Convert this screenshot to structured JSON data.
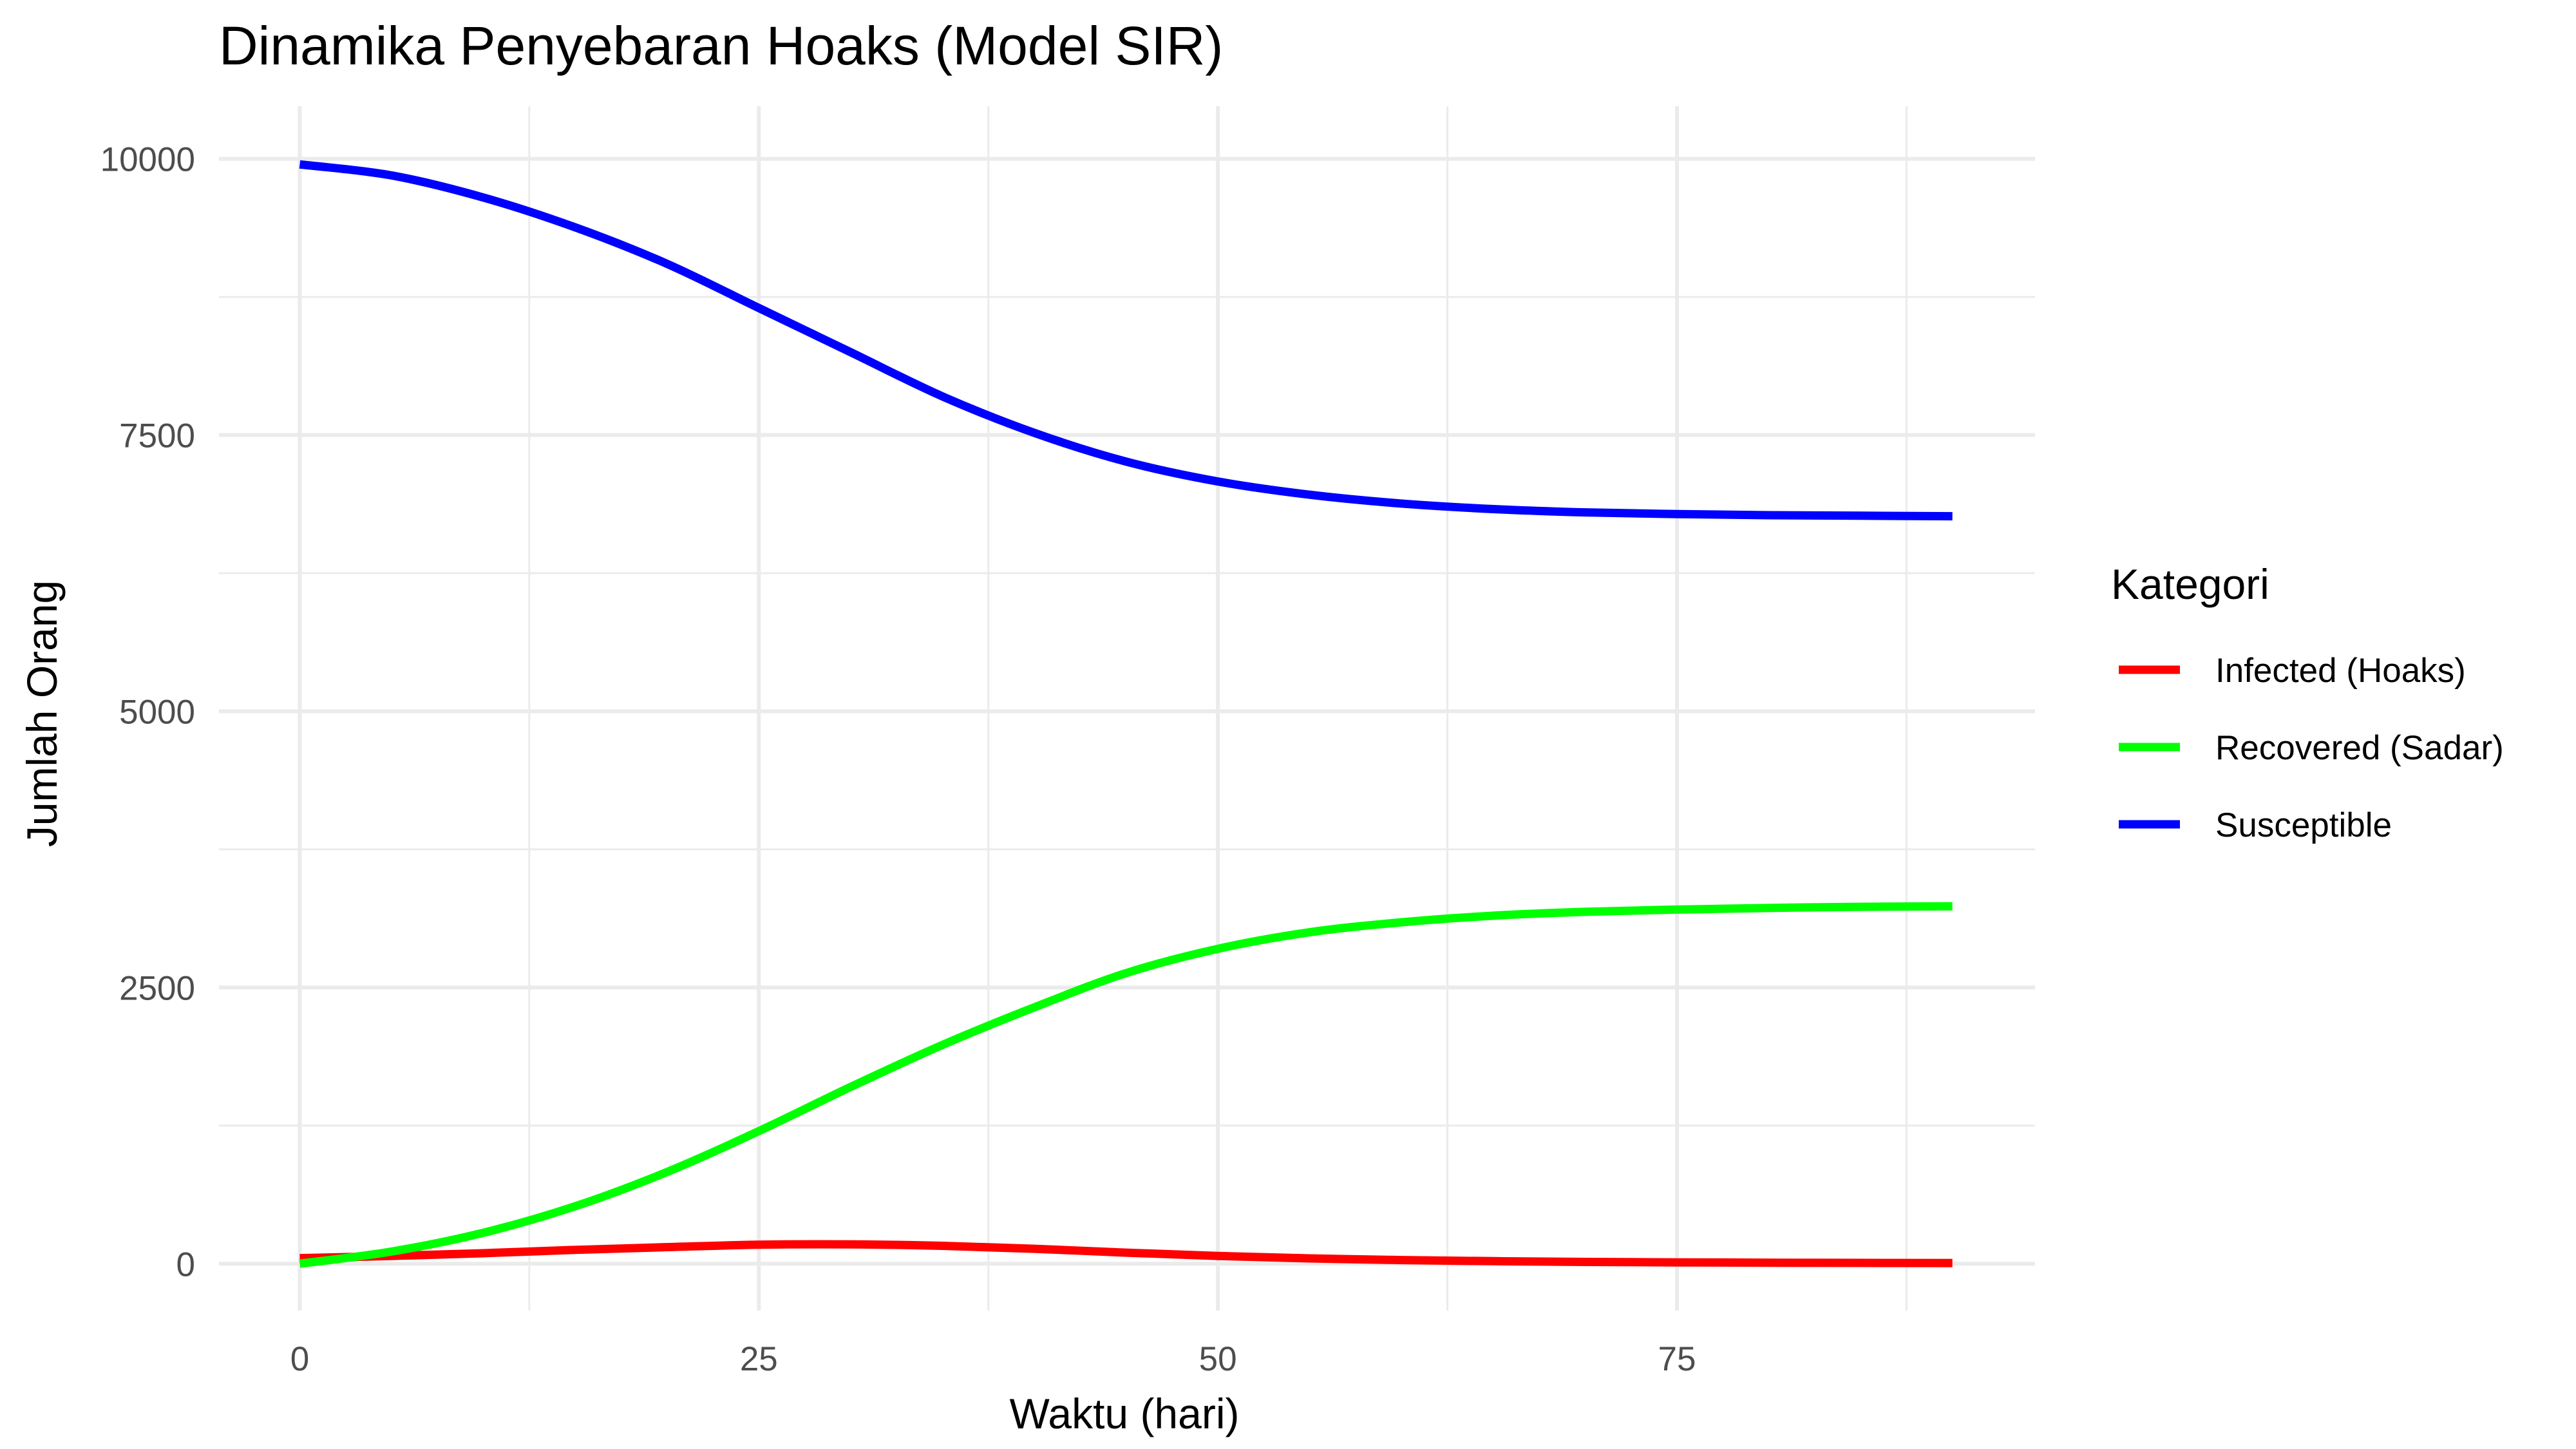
{
  "chart_data": {
    "type": "line",
    "title": "Dinamika Penyebaran Hoaks (Model SIR)",
    "xlabel": "Waktu (hari)",
    "ylabel": "Jumlah Orang",
    "xlim": [
      -4.4,
      94.5
    ],
    "ylim": [
      -424,
      10476
    ],
    "x_ticks": [
      0,
      25,
      50,
      75
    ],
    "x_tick_labels": [
      "0",
      "25",
      "50",
      "75"
    ],
    "y_ticks": [
      0,
      2500,
      5000,
      7500,
      10000
    ],
    "y_tick_labels": [
      "0",
      "2500",
      "5000",
      "7500",
      "10000"
    ],
    "grid": true,
    "legend": {
      "title": "Kategori",
      "position": "right"
    },
    "x": [
      0,
      5,
      10,
      15,
      20,
      25,
      30,
      35,
      40,
      45,
      50,
      55,
      60,
      65,
      70,
      75,
      80,
      85,
      90
    ],
    "series": [
      {
        "name": "Infected (Hoaks)",
        "color": "#ff0000",
        "values": [
          50,
          70,
          95,
          125,
          150,
          172,
          175,
          162,
          135,
          100,
          70,
          48,
          33,
          23,
          16,
          12,
          9,
          7,
          6
        ]
      },
      {
        "name": "Recovered (Sadar)",
        "color": "#00ff00",
        "values": [
          0,
          110,
          280,
          520,
          830,
          1200,
          1600,
          1980,
          2320,
          2630,
          2850,
          3000,
          3090,
          3150,
          3185,
          3205,
          3220,
          3230,
          3235
        ]
      },
      {
        "name": "Susceptible",
        "color": "#0000ff",
        "values": [
          9950,
          9850,
          9650,
          9380,
          9050,
          8650,
          8250,
          7850,
          7520,
          7260,
          7080,
          6960,
          6880,
          6830,
          6800,
          6785,
          6775,
          6770,
          6765
        ]
      }
    ]
  }
}
